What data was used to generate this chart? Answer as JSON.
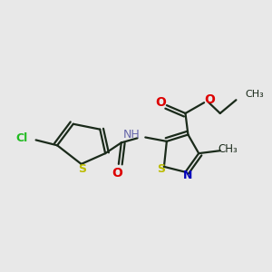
{
  "bg_color": "#e8e8e8",
  "bond_color": "#1a2a1a",
  "o_color": "#dd0000",
  "n_color": "#0000bb",
  "s_color": "#bbbb00",
  "cl_color": "#22bb22",
  "h_color": "#6666aa",
  "line_width": 1.6,
  "fig_size": [
    3.0,
    3.0
  ],
  "dpi": 100,
  "xlim": [
    0,
    10
  ],
  "ylim": [
    0,
    10
  ]
}
